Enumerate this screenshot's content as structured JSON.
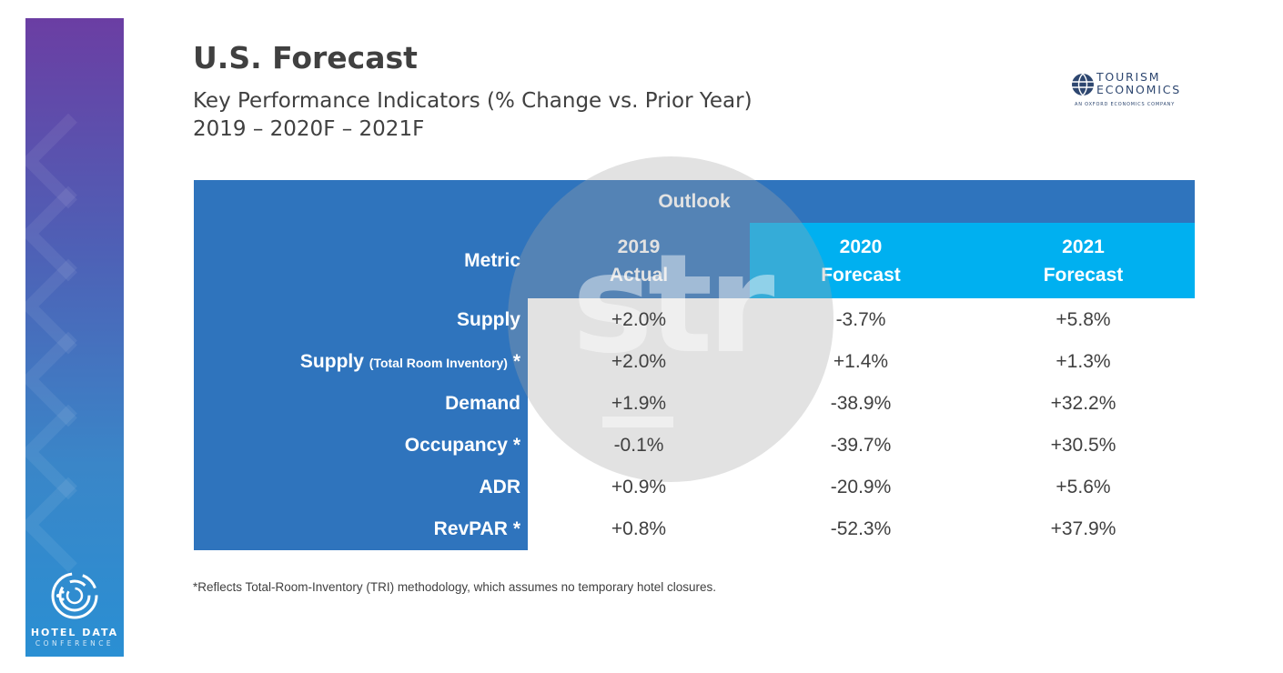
{
  "header": {
    "title": "U.S. Forecast",
    "subtitle_line1": "Key Performance Indicators (% Change vs. Prior Year)",
    "subtitle_line2": "2019 – 2020F – 2021F"
  },
  "logo_te": {
    "line1": "TOURISM",
    "line2": "ECONOMICS",
    "tagline": "AN OXFORD ECONOMICS COMPANY"
  },
  "logo_hdc": {
    "title": "HOTEL DATA",
    "subtitle": "CONFERENCE"
  },
  "watermark": "str",
  "table": {
    "outlook_label": "Outlook",
    "metric_header": "Metric",
    "columns": [
      {
        "line1": "2019",
        "line2": "Actual"
      },
      {
        "line1": "2020",
        "line2": "Forecast"
      },
      {
        "line1": "2021",
        "line2": "Forecast"
      }
    ],
    "rows": [
      {
        "label": "Supply",
        "note": "",
        "suffix": "",
        "values": [
          "+2.0%",
          "-3.7%",
          "+5.8%"
        ]
      },
      {
        "label": "Supply",
        "note": "(Total Room Inventory)",
        "suffix": "*",
        "values": [
          "+2.0%",
          "+1.4%",
          "+1.3%"
        ]
      },
      {
        "label": "Demand",
        "note": "",
        "suffix": "",
        "values": [
          "+1.9%",
          "-38.9%",
          "+32.2%"
        ]
      },
      {
        "label": "Occupancy",
        "note": "",
        "suffix": "*",
        "values": [
          "-0.1%",
          "-39.7%",
          "+30.5%"
        ]
      },
      {
        "label": "ADR",
        "note": "",
        "suffix": "",
        "values": [
          "+0.9%",
          "-20.9%",
          "+5.6%"
        ]
      },
      {
        "label": "RevPAR",
        "note": "",
        "suffix": "*",
        "values": [
          "+0.8%",
          "-52.3%",
          "+37.9%"
        ]
      }
    ]
  },
  "footnote": "*Reflects Total-Room-Inventory (TRI) methodology, which assumes no temporary hotel closures.",
  "colors": {
    "table_blue": "#2f74bd",
    "forecast_cyan": "#00b0f0",
    "text_gray": "#404040"
  }
}
